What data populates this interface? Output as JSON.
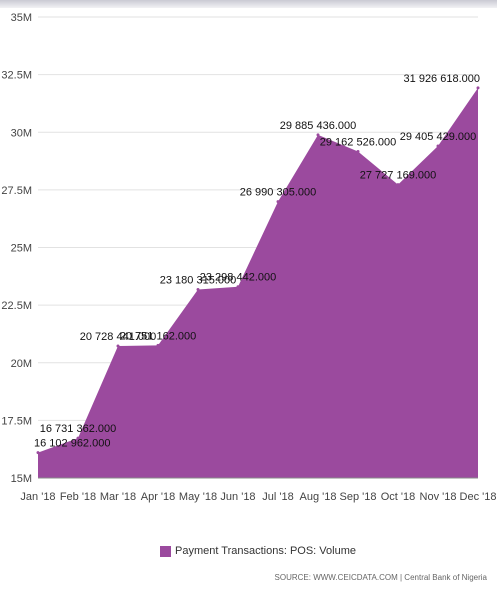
{
  "chart_data": {
    "type": "area",
    "categories": [
      "Jan '18",
      "Feb '18",
      "Mar '18",
      "Apr '18",
      "May '18",
      "Jun '18",
      "Jul '18",
      "Aug '18",
      "Sep '18",
      "Oct '18",
      "Nov '18",
      "Dec '18"
    ],
    "series": [
      {
        "name": "Payment Transactions: POS: Volume",
        "values": [
          16102962,
          16731362,
          20728441,
          20751162,
          23180315,
          23298442,
          26990305,
          29885436,
          29162526,
          27727169,
          29405429,
          31926618
        ],
        "labels": [
          "16 102 962.000",
          "16 731 362.000",
          "20 728 441.000",
          "20 751 162.000",
          "23 180 315.000",
          "23 298 442.000",
          "26 990 305.000",
          "29 885 436.000",
          "29 162 526.000",
          "27 727 169.000",
          "29 405 429.000",
          "31 926 618.000"
        ],
        "color": "#9b4a9e"
      }
    ],
    "yticks": [
      15000000,
      17500000,
      20000000,
      22500000,
      25000000,
      27500000,
      30000000,
      32500000,
      35000000
    ],
    "ytick_labels": [
      "15M",
      "17.5M",
      "20M",
      "22.5M",
      "25M",
      "27.5M",
      "30M",
      "32.5M",
      "35M"
    ],
    "ylim": [
      15000000,
      35000000
    ],
    "grid": true,
    "title": "",
    "xlabel": "",
    "ylabel": ""
  },
  "legend": {
    "label": "Payment Transactions: POS: Volume"
  },
  "source": "SOURCE: WWW.CEICDATA.COM | Central Bank of Nigeria"
}
